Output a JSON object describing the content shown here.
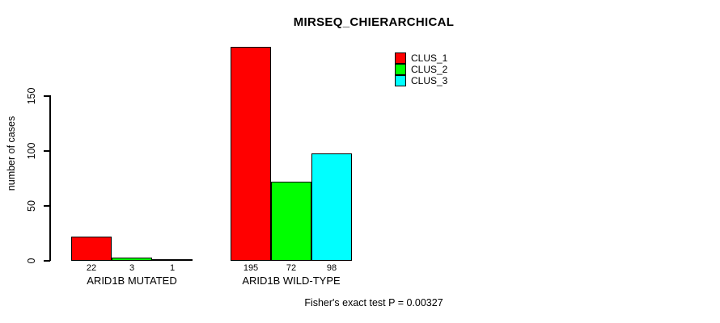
{
  "window": {
    "background_color": "#ffffff",
    "text_color": "#000000"
  },
  "chart_data": {
    "type": "bar",
    "title": "MIRSEQ_CHIERARCHICAL",
    "xlabel": "",
    "ylabel": "number of cases",
    "categories": [
      "ARID1B MUTATED",
      "ARID1B WILD-TYPE"
    ],
    "series": [
      {
        "name": "CLUS_1",
        "color": "#FF0000",
        "values": [
          22,
          195
        ]
      },
      {
        "name": "CLUS_2",
        "color": "#00FF00",
        "values": [
          3,
          72
        ]
      },
      {
        "name": "CLUS_3",
        "color": "#00FFFF",
        "values": [
          1,
          98
        ]
      }
    ],
    "yticks": [
      0,
      50,
      100,
      150
    ],
    "ylim": [
      0,
      200
    ],
    "grid": false,
    "bar_value_labels_shown": true,
    "legend_position": "top-right",
    "legend_entries": [
      "CLUS_1",
      "CLUS_2",
      "CLUS_3"
    ],
    "annotation": "Fisher's exact test P = 0.00327"
  }
}
